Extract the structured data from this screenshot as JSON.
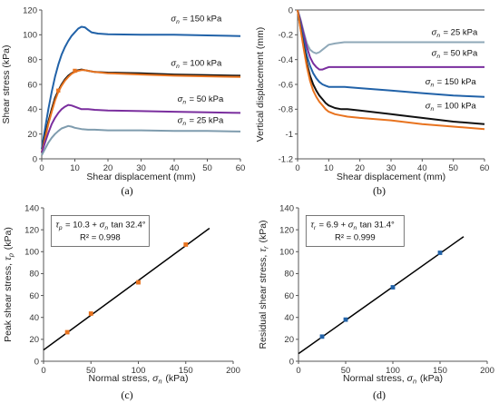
{
  "chart_data": [
    {
      "id": "a",
      "type": "line",
      "panel_label": "(a)",
      "xlabel": "Shear displacement (mm)",
      "ylabel": "Shear stress (kPa)",
      "xlim": [
        0,
        60
      ],
      "ylim": [
        0,
        120
      ],
      "xticks": [
        0,
        10,
        20,
        30,
        40,
        50,
        60
      ],
      "yticks": [
        0,
        20,
        40,
        60,
        80,
        100,
        120
      ],
      "series": [
        {
          "name": "σn = 150 kPa",
          "color": "#2162a8",
          "x": [
            0,
            1,
            2,
            3,
            4,
            5,
            6,
            7,
            8,
            9,
            10,
            11,
            12,
            13,
            14,
            15,
            17,
            20,
            30,
            40,
            50,
            60
          ],
          "y": [
            8,
            24,
            40,
            54,
            66,
            76,
            84,
            90,
            95,
            99,
            102,
            105,
            106.5,
            106,
            104,
            102,
            101,
            100.5,
            100,
            100,
            99.5,
            99
          ]
        },
        {
          "name": "σn = 100 kPa",
          "color": "#111111",
          "x": [
            0,
            1,
            2,
            3,
            4,
            5,
            6,
            7,
            8,
            9,
            10,
            11,
            12,
            13,
            14,
            16,
            20,
            30,
            40,
            50,
            60
          ],
          "y": [
            5,
            18,
            30,
            40,
            49,
            55,
            60,
            64,
            67,
            69,
            70.5,
            71.5,
            72,
            71.5,
            71,
            70,
            69.5,
            69,
            68,
            67.5,
            67
          ]
        },
        {
          "name": "",
          "color": "#e8731f",
          "x": [
            0,
            1,
            2,
            3,
            4,
            5,
            6,
            7,
            8,
            9,
            10,
            11,
            12,
            13,
            14,
            16,
            20,
            30,
            40,
            50,
            60
          ],
          "y": [
            5,
            16,
            28,
            38,
            47,
            54,
            59,
            63,
            66,
            68.5,
            70,
            71,
            71.5,
            71.5,
            71,
            70,
            69,
            68,
            67,
            66.5,
            66
          ]
        },
        {
          "name": "σn = 50 kPa",
          "color": "#7a2e9e",
          "x": [
            0,
            1,
            2,
            3,
            4,
            5,
            6,
            7,
            8,
            9,
            10,
            12,
            14,
            16,
            20,
            30,
            40,
            50,
            60
          ],
          "y": [
            5,
            13,
            21,
            28,
            33,
            37,
            40,
            42,
            43.5,
            43,
            42,
            40,
            40,
            39.5,
            39,
            38.5,
            38,
            37.5,
            37
          ]
        },
        {
          "name": "σn = 25 kPa",
          "color": "#7f9cae",
          "x": [
            0,
            1,
            2,
            3,
            4,
            5,
            6,
            7,
            8,
            9,
            10,
            12,
            14,
            16,
            20,
            30,
            40,
            50,
            60
          ],
          "y": [
            3,
            8,
            13,
            17,
            20,
            22.5,
            24.5,
            25.5,
            26.5,
            26,
            25,
            24,
            23.5,
            23.5,
            23,
            23,
            22.5,
            22.5,
            22
          ]
        }
      ],
      "peak_points": {
        "x": [
          5,
          10
        ],
        "y": [
          55,
          71
        ],
        "color": "#e8731f"
      },
      "labels": [
        {
          "text": "σn = 150 kPa",
          "x": 39,
          "y": 111
        },
        {
          "text": "σn = 100 kPa",
          "x": 39,
          "y": 75
        },
        {
          "text": "σn = 50 kPa",
          "x": 41,
          "y": 46
        },
        {
          "text": "σn = 25 kPa",
          "x": 41,
          "y": 29
        }
      ]
    },
    {
      "id": "b",
      "type": "line",
      "panel_label": "(b)",
      "xlabel": "Shear displacement (mm)",
      "ylabel": "Vertical displacement (mm)",
      "xlim": [
        0,
        60
      ],
      "ylim": [
        -1.2,
        0
      ],
      "xticks": [
        0,
        10,
        20,
        30,
        40,
        50,
        60
      ],
      "yticks": [
        0,
        -0.2,
        -0.4,
        -0.6,
        -0.8,
        -1,
        -1.2
      ],
      "ytick_labels": [
        "0",
        "-0.2",
        "-0.4",
        "-0.6",
        "-0.8",
        "-1",
        "-1.2"
      ],
      "series": [
        {
          "name": "σn = 25 kPa",
          "color": "#8fa8b8",
          "x": [
            0,
            1,
            2,
            3,
            4,
            5,
            6,
            7,
            8,
            9,
            10,
            12,
            15,
            20,
            30,
            40,
            50,
            60
          ],
          "y": [
            0,
            -0.08,
            -0.18,
            -0.27,
            -0.32,
            -0.34,
            -0.35,
            -0.34,
            -0.32,
            -0.3,
            -0.28,
            -0.27,
            -0.26,
            -0.26,
            -0.26,
            -0.26,
            -0.26,
            -0.26
          ]
        },
        {
          "name": "σn = 50 kPa",
          "color": "#7a2e9e",
          "x": [
            0,
            1,
            2,
            3,
            4,
            5,
            6,
            7,
            8,
            9,
            10,
            12,
            15,
            20,
            30,
            40,
            50,
            60
          ],
          "y": [
            0,
            -0.09,
            -0.2,
            -0.3,
            -0.38,
            -0.43,
            -0.46,
            -0.48,
            -0.48,
            -0.47,
            -0.46,
            -0.46,
            -0.46,
            -0.46,
            -0.46,
            -0.46,
            -0.46,
            -0.46
          ]
        },
        {
          "name": "σn = 150 kPa",
          "color": "#2162a8",
          "x": [
            0,
            1,
            2,
            3,
            4,
            5,
            6,
            7,
            8,
            9,
            10,
            12,
            15,
            20,
            30,
            40,
            50,
            60
          ],
          "y": [
            0,
            -0.12,
            -0.25,
            -0.37,
            -0.45,
            -0.51,
            -0.55,
            -0.58,
            -0.6,
            -0.61,
            -0.62,
            -0.62,
            -0.62,
            -0.63,
            -0.65,
            -0.67,
            -0.69,
            -0.7
          ]
        },
        {
          "name": "σn = 100 kPa",
          "color": "#111111",
          "x": [
            0,
            1,
            2,
            3,
            4,
            5,
            6,
            7,
            8,
            9,
            10,
            12,
            14,
            16,
            20,
            30,
            40,
            50,
            60
          ],
          "y": [
            0,
            -0.15,
            -0.3,
            -0.43,
            -0.53,
            -0.6,
            -0.65,
            -0.69,
            -0.72,
            -0.75,
            -0.77,
            -0.79,
            -0.8,
            -0.8,
            -0.81,
            -0.84,
            -0.87,
            -0.9,
            -0.92
          ]
        },
        {
          "name": "",
          "color": "#e8731f",
          "x": [
            0,
            1,
            2,
            3,
            4,
            5,
            6,
            7,
            8,
            9,
            10,
            12,
            14,
            16,
            20,
            30,
            40,
            50,
            60
          ],
          "y": [
            0,
            -0.16,
            -0.32,
            -0.46,
            -0.57,
            -0.65,
            -0.7,
            -0.74,
            -0.77,
            -0.8,
            -0.82,
            -0.84,
            -0.85,
            -0.86,
            -0.87,
            -0.89,
            -0.92,
            -0.94,
            -0.96
          ]
        }
      ],
      "labels": [
        {
          "text": "σn = 25 kPa",
          "x": 43,
          "y": -0.2
        },
        {
          "text": "σn = 50 kPa",
          "x": 43,
          "y": -0.37
        },
        {
          "text": "σn = 150 kPa",
          "x": 41,
          "y": -0.6
        },
        {
          "text": "σn = 100 kPa",
          "x": 41,
          "y": -0.795
        }
      ]
    },
    {
      "id": "c",
      "type": "scatter",
      "panel_label": "(c)",
      "xlabel": "Normal stress, σn (kPa)",
      "ylabel": "Peak shear stress, τp (kPa)",
      "xlim": [
        0,
        200
      ],
      "ylim": [
        0,
        140
      ],
      "xticks": [
        0,
        50,
        100,
        150,
        200
      ],
      "yticks": [
        0,
        20,
        40,
        60,
        80,
        100,
        120,
        140
      ],
      "points": {
        "x": [
          25,
          50,
          100,
          150
        ],
        "y": [
          26.5,
          43.5,
          72,
          106.5
        ],
        "color": "#e8731f"
      },
      "fit": {
        "intercept": 10.3,
        "angle_deg": 32.4,
        "x_range": [
          0,
          175
        ]
      },
      "equation_text": "τp = 10.3 + σn tan 32.4°",
      "r2_text": "R² = 0.998"
    },
    {
      "id": "d",
      "type": "scatter",
      "panel_label": "(d)",
      "xlabel": "Normal stress, σn (kPa)",
      "ylabel": "Residual shear stress, τr (kPa)",
      "xlim": [
        0,
        200
      ],
      "ylim": [
        0,
        140
      ],
      "xticks": [
        0,
        50,
        100,
        150,
        200
      ],
      "yticks": [
        0,
        20,
        40,
        60,
        80,
        100,
        120,
        140
      ],
      "points": {
        "x": [
          25,
          50,
          100,
          150
        ],
        "y": [
          22.5,
          38,
          67.5,
          99
        ],
        "color": "#2162a8"
      },
      "fit": {
        "intercept": 6.9,
        "angle_deg": 31.4,
        "x_range": [
          0,
          175
        ]
      },
      "equation_text": "τr = 6.9 + σn tan 31.4°",
      "r2_text": "R² = 0.999"
    }
  ]
}
